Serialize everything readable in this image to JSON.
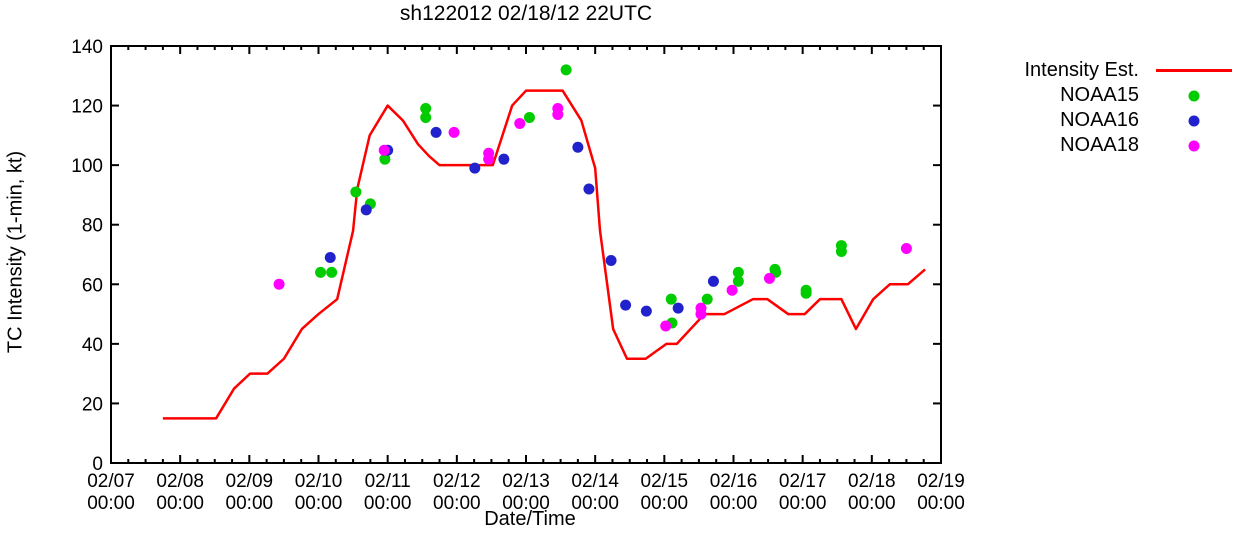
{
  "chart_data": {
    "type": "line+scatter",
    "title": "sh122012 02/18/12 22UTC",
    "xlabel": "Date/Time",
    "ylabel": "TC Intensity (1-min, kt)",
    "ylim": [
      0,
      140
    ],
    "y_ticks": [
      0,
      20,
      40,
      60,
      80,
      100,
      120,
      140
    ],
    "x_tick_dates": [
      "02/07",
      "02/08",
      "02/09",
      "02/10",
      "02/11",
      "02/12",
      "02/13",
      "02/14",
      "02/15",
      "02/16",
      "02/17",
      "02/18",
      "02/19"
    ],
    "x_tick_time": "00:00",
    "x_days_span": 12,
    "x_minor_tick_hours": 6,
    "grid": false,
    "legend_position": "outside-top-right",
    "legend": [
      {
        "label": "Intensity Est.",
        "marker": "line",
        "color": "#ff0000"
      },
      {
        "label": "NOAA15",
        "marker": "dot",
        "color": "#00cc00"
      },
      {
        "label": "NOAA16",
        "marker": "dot",
        "color": "#2222cc"
      },
      {
        "label": "NOAA18",
        "marker": "dot",
        "color": "#ff00ff"
      }
    ],
    "intensity_line": {
      "name": "Intensity Est.",
      "color": "#ff0000",
      "units": "days since 02/07 00:00, kt",
      "points": [
        [
          0.75,
          15
        ],
        [
          1.52,
          15
        ],
        [
          1.78,
          25
        ],
        [
          2.01,
          30
        ],
        [
          2.26,
          30
        ],
        [
          2.5,
          35
        ],
        [
          2.76,
          45
        ],
        [
          3.0,
          50
        ],
        [
          3.27,
          55
        ],
        [
          3.5,
          78
        ],
        [
          3.56,
          92
        ],
        [
          3.74,
          110
        ],
        [
          4.0,
          120
        ],
        [
          4.22,
          115
        ],
        [
          4.44,
          107
        ],
        [
          4.6,
          103
        ],
        [
          4.75,
          100
        ],
        [
          5.52,
          100
        ],
        [
          5.8,
          120
        ],
        [
          6.0,
          125
        ],
        [
          6.53,
          125
        ],
        [
          6.8,
          115
        ],
        [
          7.0,
          99
        ],
        [
          7.07,
          78
        ],
        [
          7.26,
          45
        ],
        [
          7.46,
          35
        ],
        [
          7.73,
          35
        ],
        [
          8.03,
          40
        ],
        [
          8.18,
          40
        ],
        [
          8.58,
          50
        ],
        [
          8.87,
          50
        ],
        [
          9.28,
          55
        ],
        [
          9.49,
          55
        ],
        [
          9.79,
          50
        ],
        [
          10.03,
          50
        ],
        [
          10.25,
          55
        ],
        [
          10.56,
          55
        ],
        [
          10.77,
          45
        ],
        [
          11.02,
          55
        ],
        [
          11.26,
          60
        ],
        [
          11.52,
          60
        ],
        [
          11.77,
          65
        ]
      ]
    },
    "series": [
      {
        "name": "NOAA15",
        "color": "#00cc00",
        "points": [
          [
            3.03,
            64
          ],
          [
            3.19,
            64
          ],
          [
            3.54,
            91
          ],
          [
            3.75,
            87
          ],
          [
            3.96,
            102
          ],
          [
            4.55,
            119
          ],
          [
            4.55,
            116
          ],
          [
            6.05,
            116
          ],
          [
            6.58,
            132
          ],
          [
            8.1,
            55
          ],
          [
            8.11,
            47
          ],
          [
            8.62,
            55
          ],
          [
            9.07,
            64
          ],
          [
            9.07,
            61
          ],
          [
            9.6,
            65
          ],
          [
            9.61,
            64
          ],
          [
            10.05,
            58
          ],
          [
            10.05,
            57
          ],
          [
            10.56,
            73
          ],
          [
            10.56,
            71
          ]
        ]
      },
      {
        "name": "NOAA16",
        "color": "#2222cc",
        "points": [
          [
            3.17,
            69
          ],
          [
            3.69,
            85
          ],
          [
            4.0,
            105
          ],
          [
            4.7,
            111
          ],
          [
            5.26,
            99
          ],
          [
            5.68,
            102
          ],
          [
            6.75,
            106
          ],
          [
            6.91,
            92
          ],
          [
            7.23,
            68
          ],
          [
            7.44,
            53
          ],
          [
            7.74,
            51
          ],
          [
            8.2,
            52
          ],
          [
            8.71,
            61
          ]
        ]
      },
      {
        "name": "NOAA18",
        "color": "#ff00ff",
        "points": [
          [
            2.43,
            60
          ],
          [
            3.95,
            105
          ],
          [
            4.96,
            111
          ],
          [
            5.46,
            104
          ],
          [
            5.46,
            102
          ],
          [
            5.91,
            114
          ],
          [
            6.46,
            119
          ],
          [
            6.46,
            117
          ],
          [
            8.02,
            46
          ],
          [
            8.53,
            52
          ],
          [
            8.53,
            50
          ],
          [
            8.98,
            58
          ],
          [
            9.52,
            62
          ],
          [
            11.5,
            72
          ]
        ]
      }
    ]
  }
}
